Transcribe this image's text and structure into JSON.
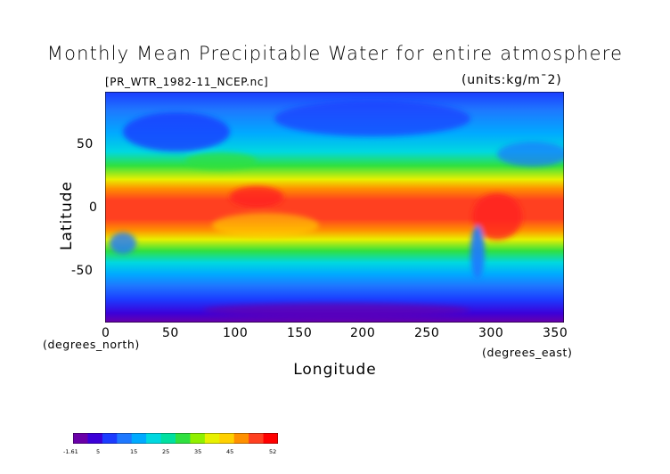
{
  "title": "Monthly Mean Precipitable Water for entire atmosphere",
  "file_label": "[PR_WTR_1982-11_NCEP.nc]",
  "units_label": "(units:kg/m¯2)",
  "y_axis": {
    "label": "Latitude",
    "unit": "(degrees_north)",
    "ticks": [
      "50",
      "0",
      "-50"
    ]
  },
  "x_axis": {
    "label": "Longitude",
    "unit": "(degrees_east)",
    "ticks": [
      "0",
      "50",
      "100",
      "150",
      "200",
      "250",
      "300",
      "350"
    ]
  },
  "colorbar": {
    "labels": [
      "-1.61",
      "5",
      "15",
      "25",
      "35",
      "45",
      "52"
    ]
  },
  "colors": {
    "scale": [
      "#6a00a8",
      "#3c00d8",
      "#1c3cff",
      "#1e78ff",
      "#00aaff",
      "#00d8e0",
      "#00e0a0",
      "#30e040",
      "#90f000",
      "#e8f000",
      "#ffd000",
      "#ff9000",
      "#ff4020",
      "#ff0000"
    ]
  }
}
